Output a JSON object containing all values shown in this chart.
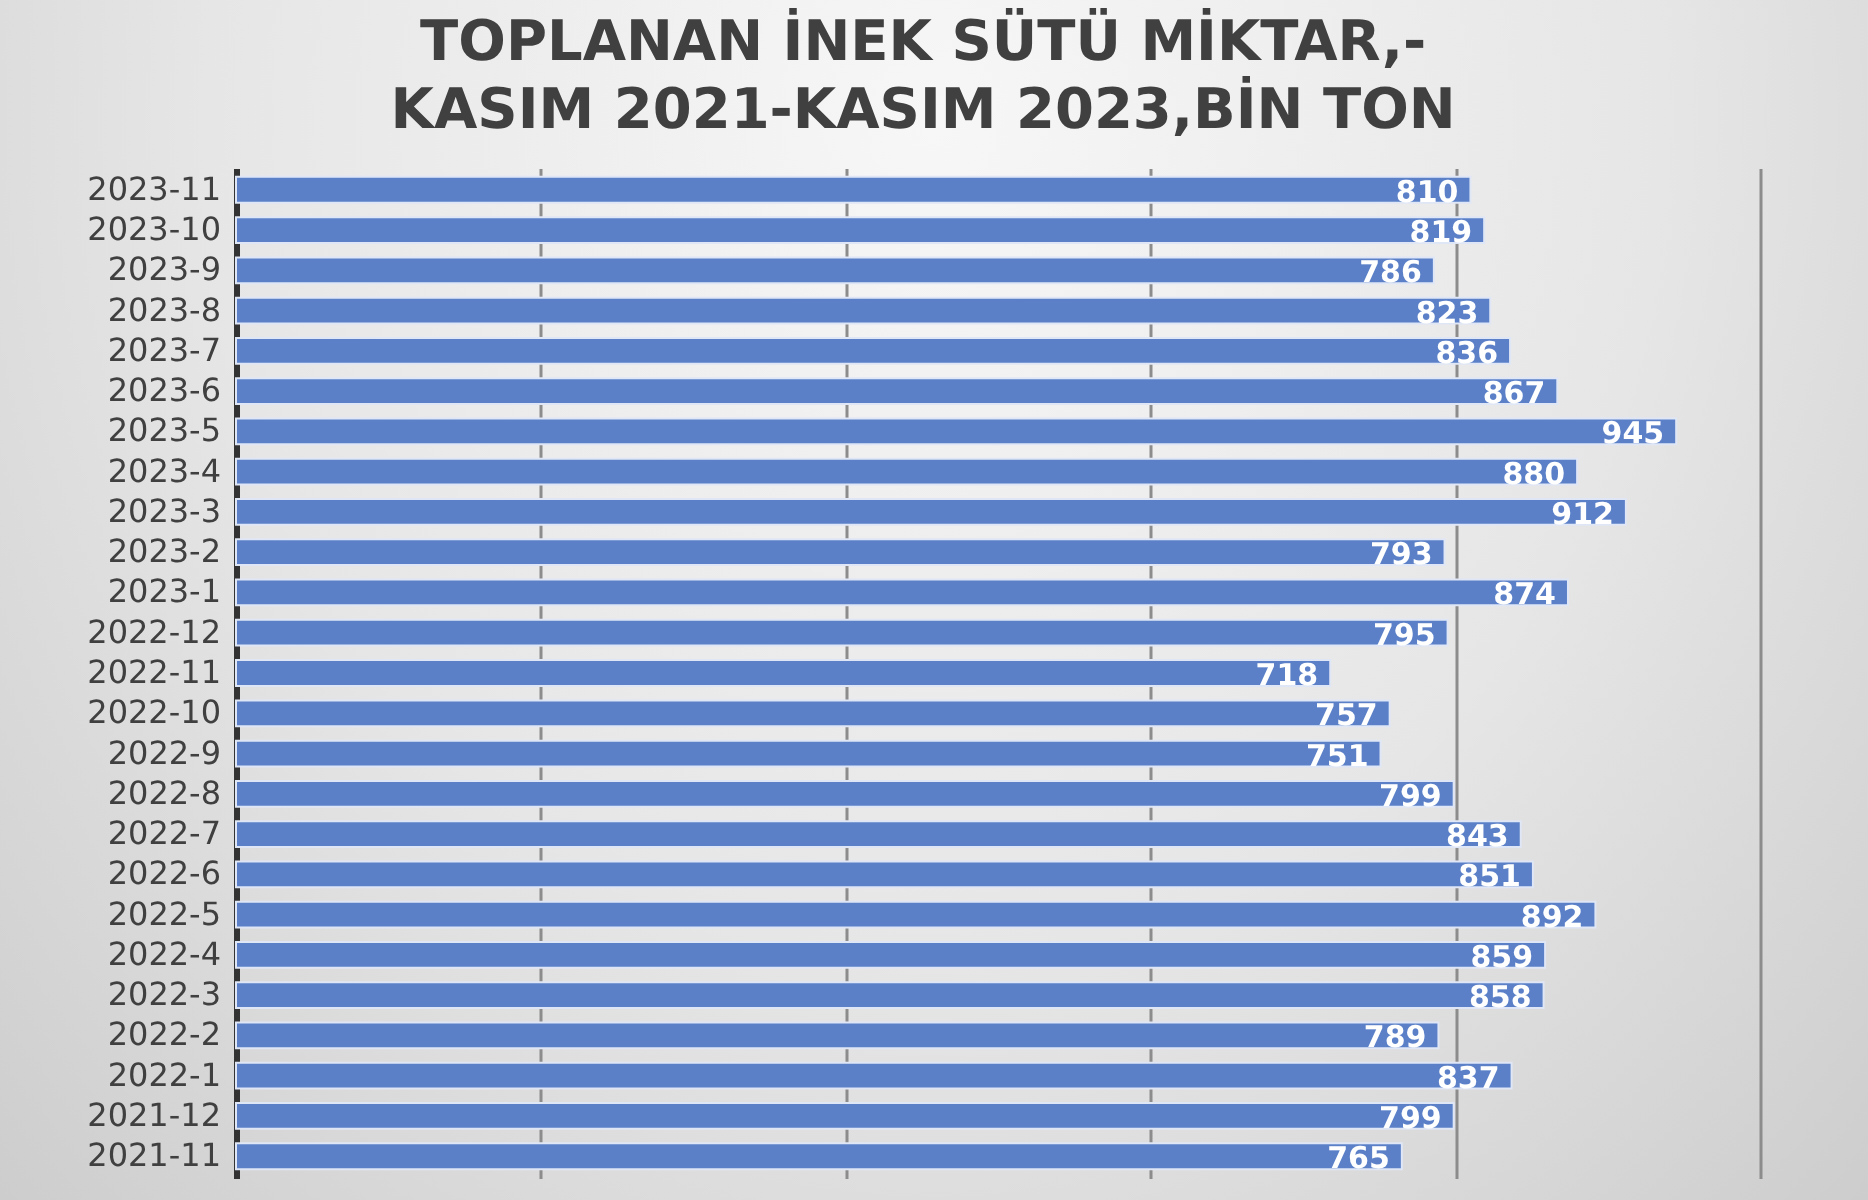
{
  "chart_data": {
    "type": "bar",
    "orientation": "horizontal",
    "title": "TOPLANAN İNEK SÜTÜ MİKTAR,-\nKASIM 2021-KASIM 2023,BİN TON",
    "categories": [
      "2023-11",
      "2023-10",
      "2023-9",
      "2023-8",
      "2023-7",
      "2023-6",
      "2023-5",
      "2023-4",
      "2023-3",
      "2023-2",
      "2023-1",
      "2022-12",
      "2022-11",
      "2022-10",
      "2022-9",
      "2022-8",
      "2022-7",
      "2022-6",
      "2022-5",
      "2022-4",
      "2022-3",
      "2022-2",
      "2022-1",
      "2021-12",
      "2021-11"
    ],
    "values": [
      810,
      819,
      786,
      823,
      836,
      867,
      945,
      880,
      912,
      793,
      874,
      795,
      718,
      757,
      751,
      799,
      843,
      851,
      892,
      859,
      858,
      789,
      837,
      799,
      765
    ],
    "color": "#5b80c8",
    "xlim": [
      0,
      1000
    ],
    "xticks": [
      {
        "value": 0,
        "label": null
      },
      {
        "value": 200,
        "label": null
      },
      {
        "value": 400,
        "label": null
      },
      {
        "value": 600,
        "label": null
      },
      {
        "value": 800,
        "label": null
      },
      {
        "value": 1000,
        "label": null
      }
    ],
    "tick_labels": "y",
    "grid": "x",
    "data_labels": true
  }
}
